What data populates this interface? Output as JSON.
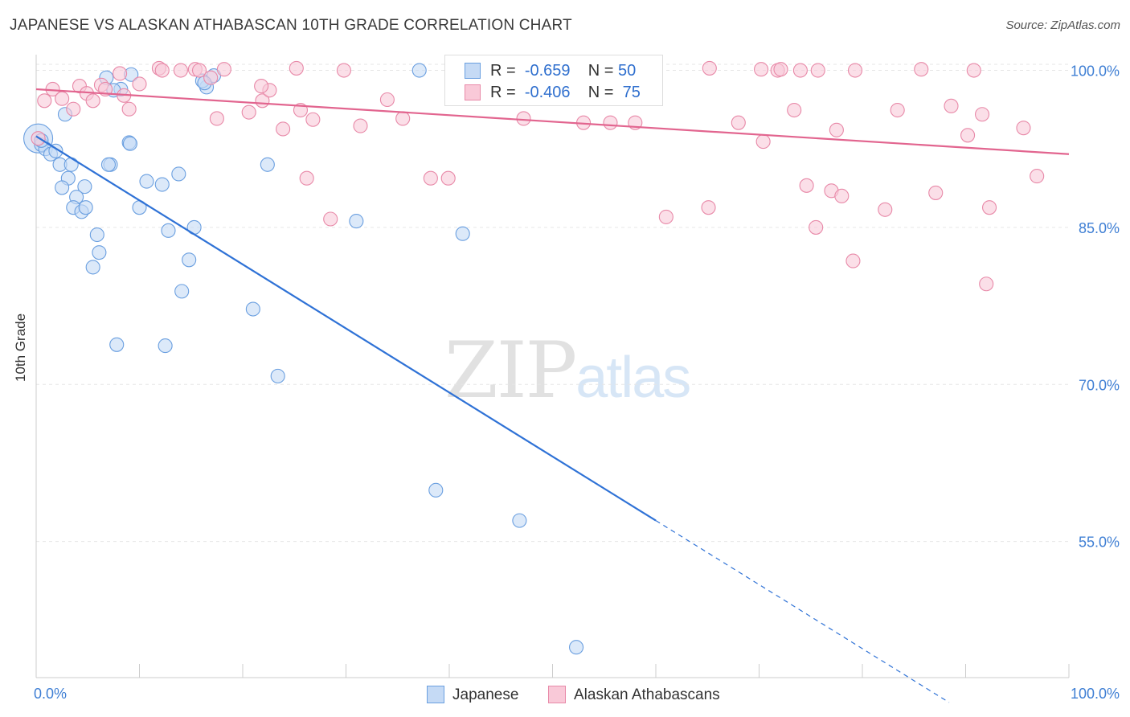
{
  "title": "JAPANESE VS ALASKAN ATHABASCAN 10TH GRADE CORRELATION CHART",
  "source": "Source: ZipAtlas.com",
  "watermark": {
    "part1": "ZIP",
    "part2": "atlas"
  },
  "legend_top": [
    {
      "r_label": "R =",
      "r_value": "-0.659",
      "n_label": "N =",
      "n_value": "50",
      "color": "#6a9fe0",
      "fill": "#c5daf5"
    },
    {
      "r_label": "R =",
      "r_value": "-0.406",
      "n_label": "N =",
      "n_value": "75",
      "color": "#e889a8",
      "fill": "#f9c9d8"
    }
  ],
  "chart_data": {
    "type": "scatter",
    "title": "JAPANESE VS ALASKAN ATHABASCAN 10TH GRADE CORRELATION CHART",
    "xlabel": "",
    "ylabel": "10th Grade",
    "xlim": [
      0,
      100
    ],
    "ylim": [
      42,
      101.5
    ],
    "x_tick_labels": [
      "0.0%",
      "100.0%"
    ],
    "y_ticks": [
      55,
      70,
      85,
      100
    ],
    "y_tick_labels": [
      "55.0%",
      "70.0%",
      "85.0%",
      "100.0%"
    ],
    "grid": true,
    "legend_position": "bottom",
    "series": [
      {
        "name": "Japanese",
        "color": "#6a9fe0",
        "fill": "#c5daf5",
        "trend": {
          "x0": 0,
          "y0": 93.7,
          "x1": 60,
          "y1": 57.0,
          "dash_to_x": 88.4
        },
        "points": [
          [
            0.2,
            93.5
          ],
          [
            0.5,
            92.9
          ],
          [
            0.9,
            92.5
          ],
          [
            1.4,
            92.0
          ],
          [
            1.9,
            92.3
          ],
          [
            2.8,
            95.8
          ],
          [
            2.3,
            91.0
          ],
          [
            3.4,
            91.0
          ],
          [
            3.1,
            89.7
          ],
          [
            2.5,
            88.8
          ],
          [
            4.7,
            88.9
          ],
          [
            3.9,
            87.9
          ],
          [
            3.6,
            86.9
          ],
          [
            4.4,
            86.5
          ],
          [
            4.8,
            86.9
          ],
          [
            7.2,
            91.0
          ],
          [
            7.0,
            91.0
          ],
          [
            9.0,
            93.1
          ],
          [
            9.1,
            93.0
          ],
          [
            10.7,
            89.4
          ],
          [
            12.2,
            89.1
          ],
          [
            13.8,
            90.1
          ],
          [
            16.5,
            98.4
          ],
          [
            16.1,
            99.0
          ],
          [
            17.2,
            99.5
          ],
          [
            16.3,
            98.8
          ],
          [
            22.4,
            91.0
          ],
          [
            10.0,
            86.9
          ],
          [
            5.9,
            84.3
          ],
          [
            6.1,
            82.6
          ],
          [
            12.8,
            84.7
          ],
          [
            15.3,
            85.0
          ],
          [
            14.8,
            81.9
          ],
          [
            5.5,
            81.2
          ],
          [
            14.1,
            78.9
          ],
          [
            21.0,
            77.2
          ],
          [
            7.8,
            73.8
          ],
          [
            12.5,
            73.7
          ],
          [
            23.4,
            70.8
          ],
          [
            6.8,
            99.3
          ],
          [
            9.2,
            99.6
          ],
          [
            8.2,
            98.2
          ],
          [
            7.5,
            98.1
          ],
          [
            37.1,
            100.0
          ],
          [
            41.3,
            84.4
          ],
          [
            31.0,
            85.6
          ],
          [
            38.7,
            59.9
          ],
          [
            46.8,
            57.0
          ],
          [
            52.3,
            44.9
          ],
          [
            0.5,
            93.3
          ]
        ]
      },
      {
        "name": "Alaskan Athabascans",
        "color": "#e889a8",
        "fill": "#f9c9d8",
        "trend": {
          "x0": 0,
          "y0": 98.2,
          "x1": 100,
          "y1": 92.0
        },
        "points": [
          [
            0.2,
            93.5
          ],
          [
            0.8,
            97.1
          ],
          [
            1.6,
            98.2
          ],
          [
            2.5,
            97.3
          ],
          [
            3.6,
            96.3
          ],
          [
            4.2,
            98.5
          ],
          [
            4.9,
            97.8
          ],
          [
            6.3,
            98.6
          ],
          [
            5.5,
            97.1
          ],
          [
            6.7,
            98.2
          ],
          [
            8.5,
            97.6
          ],
          [
            9.0,
            96.3
          ],
          [
            8.1,
            99.7
          ],
          [
            10.0,
            98.7
          ],
          [
            11.9,
            100.2
          ],
          [
            12.2,
            100.0
          ],
          [
            14.0,
            100.0
          ],
          [
            15.4,
            100.1
          ],
          [
            15.8,
            100.0
          ],
          [
            16.9,
            99.3
          ],
          [
            18.2,
            100.1
          ],
          [
            17.5,
            95.4
          ],
          [
            20.6,
            96.0
          ],
          [
            21.9,
            97.1
          ],
          [
            22.6,
            98.1
          ],
          [
            23.9,
            94.4
          ],
          [
            25.2,
            100.2
          ],
          [
            25.6,
            96.2
          ],
          [
            26.8,
            95.3
          ],
          [
            29.8,
            100.0
          ],
          [
            31.4,
            94.7
          ],
          [
            34.0,
            97.2
          ],
          [
            35.5,
            95.4
          ],
          [
            38.2,
            89.7
          ],
          [
            39.9,
            89.7
          ],
          [
            26.2,
            89.7
          ],
          [
            28.5,
            85.8
          ],
          [
            45.0,
            100.0
          ],
          [
            47.2,
            95.4
          ],
          [
            50.8,
            100.1
          ],
          [
            53.0,
            95.0
          ],
          [
            55.6,
            95.0
          ],
          [
            58.3,
            98.1
          ],
          [
            58.0,
            95.0
          ],
          [
            65.2,
            100.2
          ],
          [
            65.1,
            86.9
          ],
          [
            68.0,
            95.0
          ],
          [
            70.2,
            100.1
          ],
          [
            70.4,
            93.2
          ],
          [
            71.8,
            100.0
          ],
          [
            72.1,
            100.1
          ],
          [
            73.4,
            96.2
          ],
          [
            74.0,
            100.0
          ],
          [
            74.6,
            89.0
          ],
          [
            75.7,
            100.0
          ],
          [
            77.0,
            88.5
          ],
          [
            78.0,
            88.0
          ],
          [
            77.5,
            94.3
          ],
          [
            79.3,
            100.0
          ],
          [
            79.1,
            81.8
          ],
          [
            82.2,
            86.7
          ],
          [
            83.4,
            96.2
          ],
          [
            85.7,
            100.1
          ],
          [
            87.1,
            88.3
          ],
          [
            88.6,
            96.6
          ],
          [
            90.2,
            93.8
          ],
          [
            90.8,
            100.0
          ],
          [
            91.6,
            95.8
          ],
          [
            92.3,
            86.9
          ],
          [
            95.6,
            94.5
          ],
          [
            96.9,
            89.9
          ],
          [
            21.8,
            98.5
          ],
          [
            61.0,
            86.0
          ],
          [
            75.5,
            85.0
          ],
          [
            92.0,
            79.6
          ]
        ]
      }
    ]
  }
}
